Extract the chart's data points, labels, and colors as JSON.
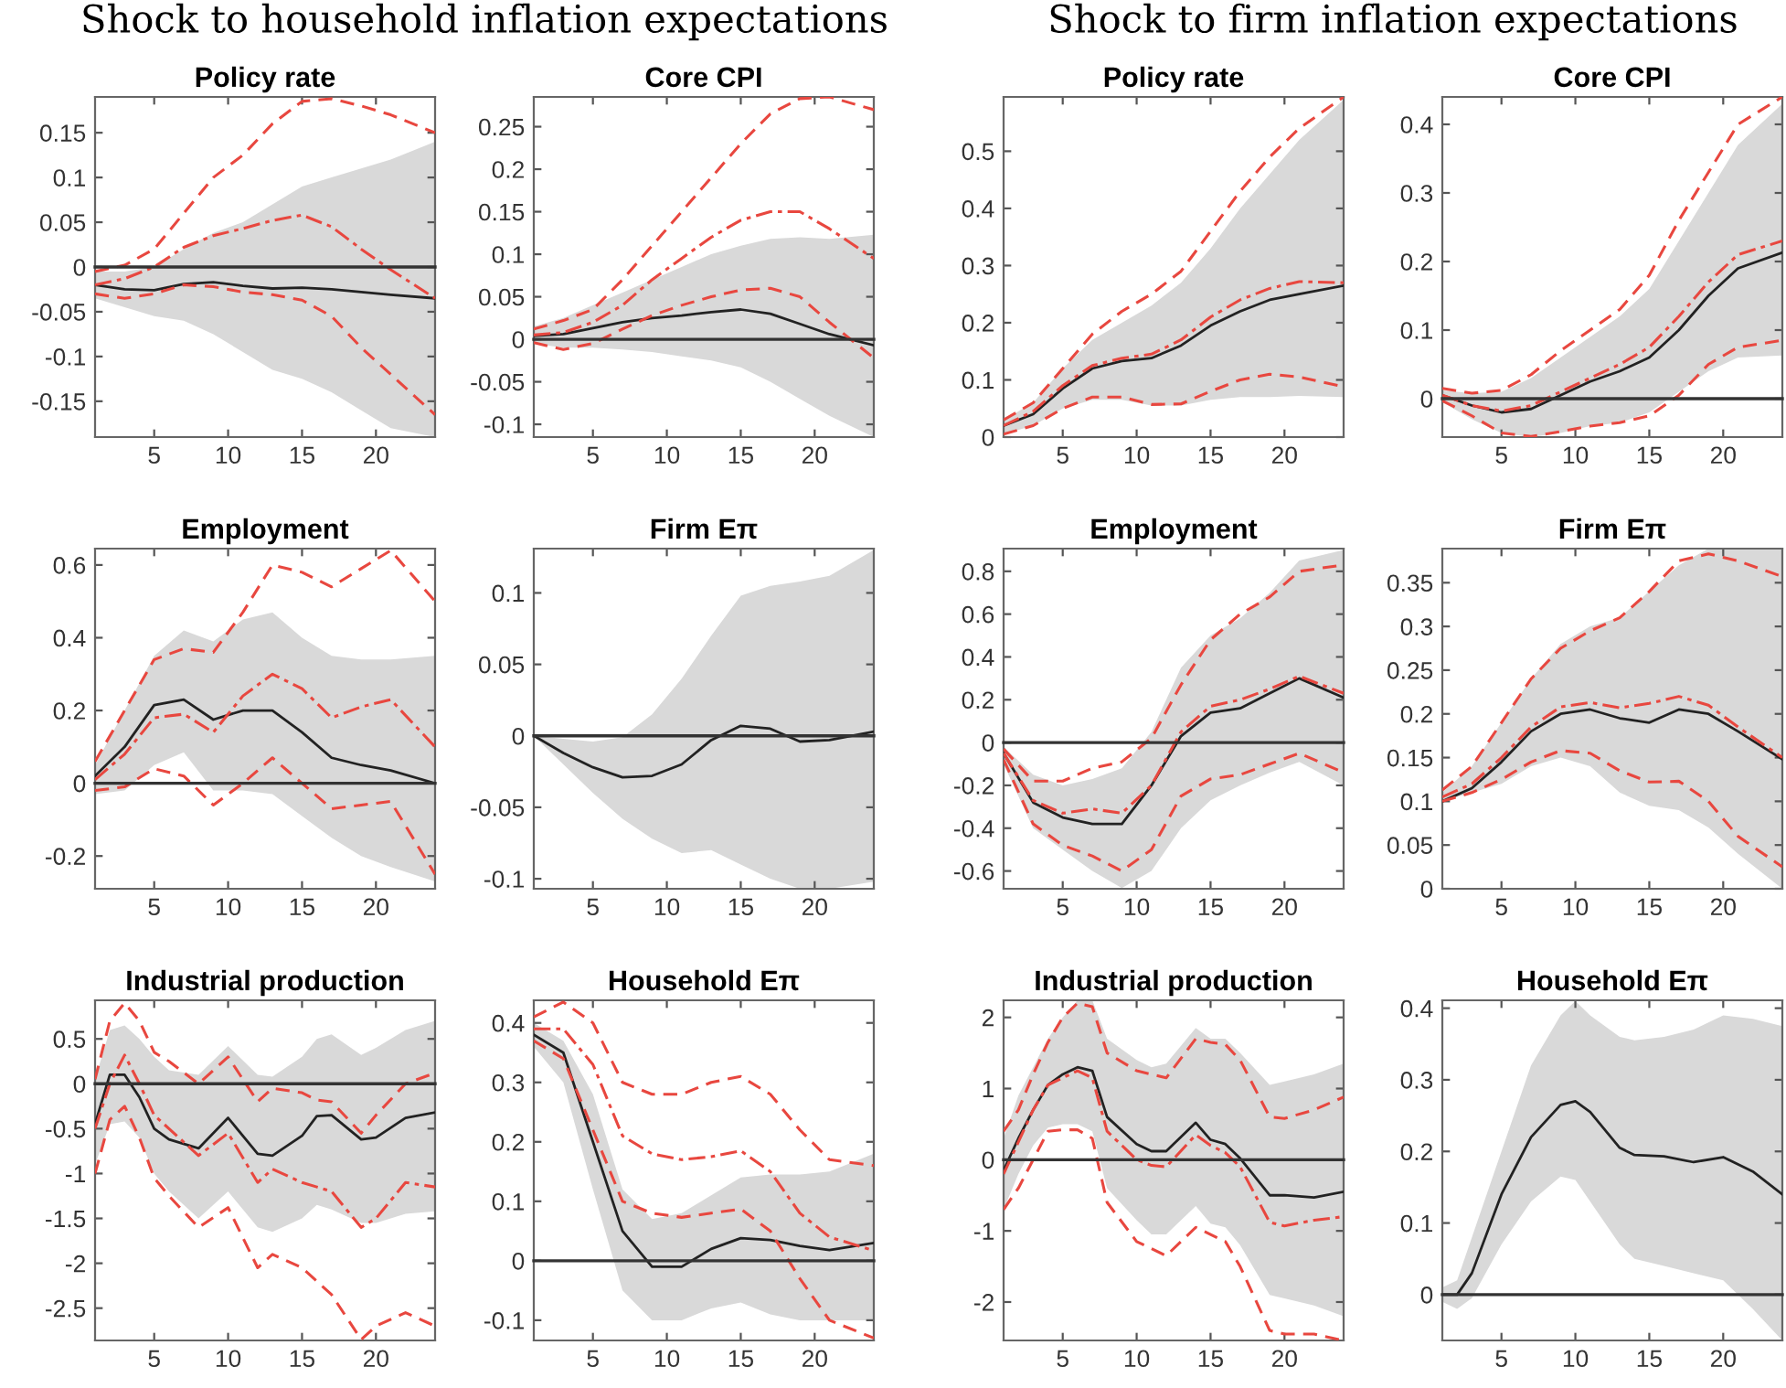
{
  "chart_data": [
    {
      "type": "line",
      "title": "Policy rate",
      "annotations": [
        "Shock to household inflation expectations"
      ],
      "xlim": [
        1,
        24
      ],
      "xticks": [
        5,
        10,
        15,
        20
      ],
      "ylim": [
        -0.19,
        0.19
      ],
      "yticks": [
        -0.15,
        -0.1,
        -0.05,
        0,
        0.05,
        0.1,
        0.15
      ],
      "x": [
        1,
        3,
        5,
        7,
        9,
        11,
        13,
        15,
        17,
        19,
        21,
        24
      ],
      "ref_lines": [
        {
          "axis": "y",
          "value": 0,
          "color": "#333333"
        }
      ],
      "series": [
        {
          "color": "#222222",
          "line_style": "solid",
          "values": [
            -0.02,
            -0.025,
            -0.026,
            -0.019,
            -0.017,
            -0.021,
            -0.024,
            -0.023,
            -0.025,
            -0.028,
            -0.031,
            -0.035
          ],
          "lower": [
            -0.035,
            -0.045,
            -0.055,
            -0.06,
            -0.075,
            -0.095,
            -0.115,
            -0.125,
            -0.14,
            -0.16,
            -0.18,
            -0.19
          ],
          "upper": [
            -0.005,
            -0.005,
            0.0,
            0.02,
            0.038,
            0.05,
            0.07,
            0.09,
            0.1,
            0.11,
            0.12,
            0.14
          ]
        },
        {
          "color": "#e8473f",
          "line_style": "dashed",
          "values": [
            -0.005,
            0.002,
            0.02,
            0.06,
            0.1,
            0.125,
            0.16,
            0.185,
            0.188,
            0.18,
            0.17,
            0.15
          ]
        },
        {
          "color": "#e8473f",
          "line_style": "dashdot",
          "values": [
            -0.02,
            -0.013,
            0.0,
            0.022,
            0.035,
            0.043,
            0.052,
            0.058,
            0.045,
            0.02,
            -0.003,
            -0.035
          ]
        },
        {
          "color": "#e8473f",
          "line_style": "dashed",
          "values": [
            -0.03,
            -0.035,
            -0.03,
            -0.02,
            -0.022,
            -0.028,
            -0.031,
            -0.037,
            -0.055,
            -0.09,
            -0.12,
            -0.165
          ]
        }
      ]
    },
    {
      "type": "line",
      "title": "Core CPI",
      "xlim": [
        1,
        24
      ],
      "xticks": [
        5,
        10,
        15,
        20
      ],
      "ylim": [
        -0.115,
        0.285
      ],
      "yticks": [
        -0.1,
        -0.05,
        0,
        0.05,
        0.1,
        0.15,
        0.2,
        0.25
      ],
      "x": [
        1,
        3,
        5,
        7,
        9,
        11,
        13,
        15,
        17,
        19,
        21,
        24
      ],
      "ref_lines": [
        {
          "axis": "y",
          "value": 0,
          "color": "#333333"
        }
      ],
      "series": [
        {
          "color": "#222222",
          "line_style": "solid",
          "values": [
            0.004,
            0.006,
            0.013,
            0.02,
            0.025,
            0.028,
            0.032,
            0.035,
            0.03,
            0.018,
            0.006,
            -0.007
          ],
          "lower": [
            -0.005,
            -0.01,
            -0.01,
            -0.012,
            -0.015,
            -0.02,
            -0.025,
            -0.033,
            -0.05,
            -0.07,
            -0.09,
            -0.115
          ],
          "upper": [
            0.015,
            0.025,
            0.04,
            0.055,
            0.07,
            0.085,
            0.1,
            0.11,
            0.118,
            0.12,
            0.118,
            0.123
          ]
        },
        {
          "color": "#e8473f",
          "line_style": "dashed",
          "values": [
            0.012,
            0.022,
            0.035,
            0.07,
            0.11,
            0.15,
            0.19,
            0.23,
            0.265,
            0.283,
            0.285,
            0.27
          ]
        },
        {
          "color": "#e8473f",
          "line_style": "dashdot",
          "values": [
            0.005,
            0.008,
            0.02,
            0.04,
            0.07,
            0.095,
            0.12,
            0.14,
            0.15,
            0.15,
            0.13,
            0.095
          ]
        },
        {
          "color": "#e8473f",
          "line_style": "dashed",
          "values": [
            -0.004,
            -0.012,
            -0.005,
            0.012,
            0.028,
            0.04,
            0.05,
            0.058,
            0.06,
            0.05,
            0.02,
            -0.022
          ]
        }
      ]
    },
    {
      "type": "line",
      "title": "Policy rate",
      "annotations": [
        "Shock to firm inflation expectations"
      ],
      "xlim": [
        1,
        24
      ],
      "xticks": [
        5,
        10,
        15,
        20
      ],
      "ylim": [
        0,
        0.595
      ],
      "yticks": [
        0,
        0.1,
        0.2,
        0.3,
        0.4,
        0.5
      ],
      "x": [
        1,
        3,
        5,
        7,
        9,
        11,
        13,
        15,
        17,
        19,
        21,
        24
      ],
      "series": [
        {
          "color": "#222222",
          "line_style": "solid",
          "values": [
            0.02,
            0.04,
            0.085,
            0.12,
            0.133,
            0.138,
            0.16,
            0.195,
            0.22,
            0.24,
            0.25,
            0.265
          ],
          "lower": [
            0.005,
            0.02,
            0.05,
            0.065,
            0.065,
            0.055,
            0.055,
            0.065,
            0.07,
            0.07,
            0.072,
            0.07
          ],
          "upper": [
            0.03,
            0.06,
            0.12,
            0.17,
            0.2,
            0.23,
            0.27,
            0.33,
            0.4,
            0.46,
            0.52,
            0.59
          ]
        },
        {
          "color": "#e8473f",
          "line_style": "dashed",
          "values": [
            0.03,
            0.06,
            0.12,
            0.18,
            0.22,
            0.25,
            0.29,
            0.36,
            0.43,
            0.49,
            0.54,
            0.595
          ]
        },
        {
          "color": "#e8473f",
          "line_style": "dashdot",
          "values": [
            0.02,
            0.045,
            0.09,
            0.125,
            0.138,
            0.145,
            0.17,
            0.21,
            0.24,
            0.26,
            0.272,
            0.27
          ]
        },
        {
          "color": "#e8473f",
          "line_style": "dashed",
          "values": [
            0.005,
            0.02,
            0.05,
            0.07,
            0.07,
            0.057,
            0.058,
            0.08,
            0.1,
            0.11,
            0.105,
            0.088
          ]
        }
      ]
    },
    {
      "type": "line",
      "title": "Core CPI",
      "xlim": [
        1,
        24
      ],
      "xticks": [
        5,
        10,
        15,
        20
      ],
      "ylim": [
        -0.056,
        0.44
      ],
      "yticks": [
        0,
        0.1,
        0.2,
        0.3,
        0.4
      ],
      "x": [
        1,
        3,
        5,
        7,
        9,
        11,
        13,
        15,
        17,
        19,
        21,
        24
      ],
      "ref_lines": [
        {
          "axis": "y",
          "value": 0,
          "color": "#333333"
        }
      ],
      "series": [
        {
          "color": "#222222",
          "line_style": "solid",
          "values": [
            0.005,
            -0.01,
            -0.02,
            -0.015,
            0.005,
            0.025,
            0.04,
            0.06,
            0.1,
            0.15,
            0.19,
            0.213
          ],
          "lower": [
            -0.005,
            -0.03,
            -0.05,
            -0.056,
            -0.05,
            -0.04,
            -0.035,
            -0.02,
            0.01,
            0.04,
            0.06,
            0.063
          ],
          "upper": [
            0.012,
            0.008,
            0.01,
            0.03,
            0.06,
            0.09,
            0.12,
            0.16,
            0.23,
            0.3,
            0.37,
            0.43
          ]
        },
        {
          "color": "#e8473f",
          "line_style": "dashed",
          "values": [
            0.015,
            0.008,
            0.012,
            0.035,
            0.07,
            0.1,
            0.13,
            0.18,
            0.26,
            0.33,
            0.4,
            0.44
          ]
        },
        {
          "color": "#e8473f",
          "line_style": "dashdot",
          "values": [
            0.005,
            -0.01,
            -0.018,
            -0.01,
            0.01,
            0.03,
            0.05,
            0.075,
            0.12,
            0.17,
            0.21,
            0.23
          ]
        },
        {
          "color": "#e8473f",
          "line_style": "dashed",
          "values": [
            -0.003,
            -0.025,
            -0.05,
            -0.055,
            -0.048,
            -0.04,
            -0.035,
            -0.025,
            0.005,
            0.05,
            0.075,
            0.085
          ]
        }
      ]
    },
    {
      "type": "line",
      "title": "Employment",
      "xlim": [
        1,
        24
      ],
      "xticks": [
        5,
        10,
        15,
        20
      ],
      "ylim": [
        -0.29,
        0.645
      ],
      "yticks": [
        -0.2,
        0,
        0.2,
        0.4,
        0.6
      ],
      "x": [
        1,
        3,
        5,
        7,
        9,
        11,
        13,
        15,
        17,
        19,
        21,
        24
      ],
      "ref_lines": [
        {
          "axis": "y",
          "value": 0,
          "color": "#333333"
        }
      ],
      "series": [
        {
          "color": "#222222",
          "line_style": "solid",
          "values": [
            0.02,
            0.1,
            0.215,
            0.23,
            0.175,
            0.2,
            0.2,
            0.14,
            0.07,
            0.05,
            0.035,
            0.0
          ],
          "lower": [
            -0.03,
            -0.02,
            0.05,
            0.085,
            -0.02,
            -0.02,
            -0.03,
            -0.09,
            -0.15,
            -0.2,
            -0.23,
            -0.27
          ],
          "upper": [
            0.05,
            0.2,
            0.35,
            0.42,
            0.39,
            0.45,
            0.47,
            0.4,
            0.35,
            0.34,
            0.34,
            0.35
          ]
        },
        {
          "color": "#e8473f",
          "line_style": "dashed",
          "values": [
            0.06,
            0.2,
            0.34,
            0.37,
            0.36,
            0.47,
            0.6,
            0.58,
            0.54,
            0.59,
            0.64,
            0.5
          ]
        },
        {
          "color": "#e8473f",
          "line_style": "dashdot",
          "values": [
            0.01,
            0.08,
            0.18,
            0.19,
            0.14,
            0.24,
            0.3,
            0.26,
            0.18,
            0.21,
            0.23,
            0.1
          ]
        },
        {
          "color": "#e8473f",
          "line_style": "dashed",
          "values": [
            -0.02,
            -0.01,
            0.04,
            0.02,
            -0.06,
            0.0,
            0.07,
            0.0,
            -0.07,
            -0.06,
            -0.05,
            -0.25
          ]
        }
      ]
    },
    {
      "type": "line",
      "title": "Firm Eπ",
      "xlim": [
        1,
        24
      ],
      "xticks": [
        5,
        10,
        15,
        20
      ],
      "ylim": [
        -0.107,
        0.131
      ],
      "yticks": [
        -0.1,
        -0.05,
        0,
        0.05,
        0.1
      ],
      "x": [
        1,
        3,
        5,
        7,
        9,
        11,
        13,
        15,
        17,
        19,
        21,
        24
      ],
      "ref_lines": [
        {
          "axis": "y",
          "value": 0,
          "color": "#333333"
        }
      ],
      "series": [
        {
          "color": "#222222",
          "line_style": "solid",
          "values": [
            0,
            -0.012,
            -0.022,
            -0.029,
            -0.028,
            -0.02,
            -0.003,
            0.007,
            0.005,
            -0.004,
            -0.003,
            0.003
          ],
          "lower": [
            0,
            -0.02,
            -0.04,
            -0.058,
            -0.072,
            -0.082,
            -0.08,
            -0.09,
            -0.1,
            -0.107,
            -0.107,
            -0.102
          ],
          "upper": [
            0,
            -0.002,
            -0.004,
            -0.001,
            0.015,
            0.04,
            0.07,
            0.098,
            0.105,
            0.108,
            0.112,
            0.13
          ]
        }
      ]
    },
    {
      "type": "line",
      "title": "Employment",
      "xlim": [
        1,
        24
      ],
      "xticks": [
        5,
        10,
        15,
        20
      ],
      "ylim": [
        -0.683,
        0.906
      ],
      "yticks": [
        -0.6,
        -0.4,
        -0.2,
        0,
        0.2,
        0.4,
        0.6,
        0.8
      ],
      "x": [
        1,
        3,
        5,
        7,
        9,
        11,
        13,
        15,
        17,
        19,
        21,
        24
      ],
      "ref_lines": [
        {
          "axis": "y",
          "value": 0,
          "color": "#333333"
        }
      ],
      "series": [
        {
          "color": "#222222",
          "line_style": "solid",
          "values": [
            -0.05,
            -0.28,
            -0.35,
            -0.38,
            -0.38,
            -0.2,
            0.03,
            0.14,
            0.16,
            0.23,
            0.3,
            0.21
          ],
          "lower": [
            -0.1,
            -0.4,
            -0.5,
            -0.6,
            -0.68,
            -0.6,
            -0.4,
            -0.27,
            -0.2,
            -0.14,
            -0.09,
            -0.2
          ],
          "upper": [
            -0.02,
            -0.15,
            -0.2,
            -0.17,
            -0.12,
            0.05,
            0.35,
            0.5,
            0.58,
            0.7,
            0.85,
            0.9
          ]
        },
        {
          "color": "#e8473f",
          "line_style": "dashed",
          "values": [
            -0.03,
            -0.18,
            -0.18,
            -0.12,
            -0.09,
            0.02,
            0.27,
            0.48,
            0.6,
            0.68,
            0.8,
            0.83
          ]
        },
        {
          "color": "#e8473f",
          "line_style": "dashdot",
          "values": [
            -0.05,
            -0.27,
            -0.33,
            -0.31,
            -0.33,
            -0.2,
            0.05,
            0.17,
            0.2,
            0.25,
            0.31,
            0.23
          ]
        },
        {
          "color": "#e8473f",
          "line_style": "dashed",
          "values": [
            -0.08,
            -0.38,
            -0.48,
            -0.53,
            -0.6,
            -0.5,
            -0.25,
            -0.17,
            -0.15,
            -0.1,
            -0.05,
            -0.14
          ]
        }
      ]
    },
    {
      "type": "line",
      "title": "Firm Eπ",
      "xlim": [
        1,
        24
      ],
      "xticks": [
        5,
        10,
        15,
        20
      ],
      "ylim": [
        0,
        0.389
      ],
      "yticks": [
        0,
        0.05,
        0.1,
        0.15,
        0.2,
        0.25,
        0.3,
        0.35
      ],
      "x": [
        1,
        3,
        5,
        7,
        9,
        11,
        13,
        15,
        17,
        19,
        21,
        24
      ],
      "series": [
        {
          "color": "#222222",
          "line_style": "solid",
          "values": [
            0.1,
            0.115,
            0.145,
            0.18,
            0.2,
            0.205,
            0.195,
            0.19,
            0.205,
            0.2,
            0.18,
            0.148
          ],
          "lower": [
            0.1,
            0.11,
            0.12,
            0.14,
            0.15,
            0.14,
            0.11,
            0.095,
            0.09,
            0.07,
            0.04,
            0.0
          ],
          "upper": [
            0.11,
            0.14,
            0.19,
            0.24,
            0.28,
            0.3,
            0.31,
            0.34,
            0.37,
            0.389,
            0.389,
            0.389
          ]
        },
        {
          "color": "#e8473f",
          "line_style": "dashed",
          "values": [
            0.113,
            0.14,
            0.19,
            0.24,
            0.275,
            0.295,
            0.31,
            0.34,
            0.375,
            0.383,
            0.375,
            0.357
          ]
        },
        {
          "color": "#e8473f",
          "line_style": "dashdot",
          "values": [
            0.105,
            0.12,
            0.15,
            0.185,
            0.208,
            0.213,
            0.207,
            0.212,
            0.22,
            0.21,
            0.185,
            0.15
          ]
        },
        {
          "color": "#e8473f",
          "line_style": "dashed",
          "values": [
            0.1,
            0.11,
            0.125,
            0.145,
            0.158,
            0.155,
            0.135,
            0.122,
            0.123,
            0.1,
            0.06,
            0.025
          ]
        }
      ]
    },
    {
      "type": "line",
      "title": "Industrial production",
      "xlim": [
        1,
        24
      ],
      "xticks": [
        5,
        10,
        15,
        20
      ],
      "ylim": [
        -2.86,
        0.93
      ],
      "yticks": [
        -2.5,
        -2,
        -1.5,
        -1,
        -0.5,
        0,
        0.5
      ],
      "x": [
        1,
        2,
        3,
        4,
        5,
        6,
        8,
        10,
        12,
        13,
        15,
        16,
        17,
        19,
        20,
        22,
        24
      ],
      "ref_lines": [
        {
          "axis": "y",
          "value": 0,
          "color": "#333333"
        }
      ],
      "series": [
        {
          "color": "#222222",
          "line_style": "solid",
          "values": [
            -0.45,
            0.1,
            0.1,
            -0.15,
            -0.5,
            -0.62,
            -0.72,
            -0.38,
            -0.78,
            -0.8,
            -0.58,
            -0.36,
            -0.35,
            -0.62,
            -0.6,
            -0.38,
            -0.32
          ],
          "lower": [
            -0.9,
            -0.45,
            -0.42,
            -0.6,
            -1.0,
            -1.2,
            -1.5,
            -1.2,
            -1.6,
            -1.65,
            -1.5,
            -1.35,
            -1.4,
            -1.55,
            -1.55,
            -1.45,
            -1.42
          ],
          "upper": [
            0.05,
            0.6,
            0.65,
            0.5,
            0.3,
            0.15,
            0.1,
            0.42,
            0.1,
            0.08,
            0.3,
            0.5,
            0.55,
            0.32,
            0.4,
            0.6,
            0.7
          ]
        },
        {
          "color": "#e8473f",
          "line_style": "dashed",
          "values": [
            0.05,
            0.7,
            0.9,
            0.7,
            0.35,
            0.25,
            0.0,
            0.3,
            -0.2,
            -0.05,
            -0.1,
            -0.18,
            -0.2,
            -0.55,
            -0.35,
            0.0,
            0.12
          ]
        },
        {
          "color": "#e8473f",
          "line_style": "dashdot",
          "values": [
            -0.5,
            0.0,
            0.32,
            0.0,
            -0.35,
            -0.5,
            -0.8,
            -0.55,
            -1.1,
            -0.95,
            -1.1,
            -1.15,
            -1.2,
            -1.6,
            -1.5,
            -1.1,
            -1.15
          ]
        },
        {
          "color": "#e8473f",
          "line_style": "dashed",
          "values": [
            -1.0,
            -0.4,
            -0.25,
            -0.6,
            -1.05,
            -1.25,
            -1.6,
            -1.38,
            -2.05,
            -1.9,
            -2.05,
            -2.2,
            -2.35,
            -2.85,
            -2.7,
            -2.55,
            -2.7
          ]
        }
      ]
    },
    {
      "type": "line",
      "title": "Household Eπ",
      "xlim": [
        1,
        24
      ],
      "xticks": [
        5,
        10,
        15,
        20
      ],
      "ylim": [
        -0.134,
        0.438
      ],
      "yticks": [
        -0.1,
        0,
        0.1,
        0.2,
        0.3,
        0.4
      ],
      "x": [
        1,
        3,
        5,
        7,
        9,
        11,
        13,
        15,
        17,
        19,
        21,
        24
      ],
      "ref_lines": [
        {
          "axis": "y",
          "value": 0,
          "color": "#333333"
        }
      ],
      "series": [
        {
          "color": "#222222",
          "line_style": "solid",
          "values": [
            0.38,
            0.35,
            0.2,
            0.05,
            -0.01,
            -0.01,
            0.02,
            0.038,
            0.035,
            0.025,
            0.018,
            0.03
          ],
          "lower": [
            0.36,
            0.3,
            0.12,
            -0.05,
            -0.1,
            -0.1,
            -0.08,
            -0.07,
            -0.09,
            -0.1,
            -0.1,
            -0.1
          ],
          "upper": [
            0.4,
            0.37,
            0.28,
            0.12,
            0.07,
            0.08,
            0.11,
            0.14,
            0.145,
            0.145,
            0.15,
            0.18
          ]
        },
        {
          "color": "#e8473f",
          "line_style": "dashed",
          "values": [
            0.41,
            0.435,
            0.4,
            0.3,
            0.28,
            0.28,
            0.3,
            0.31,
            0.28,
            0.22,
            0.17,
            0.16
          ]
        },
        {
          "color": "#e8473f",
          "line_style": "dashdot",
          "values": [
            0.39,
            0.39,
            0.33,
            0.21,
            0.18,
            0.17,
            0.175,
            0.185,
            0.15,
            0.08,
            0.04,
            0.017
          ]
        },
        {
          "color": "#e8473f",
          "line_style": "dashed",
          "values": [
            0.37,
            0.34,
            0.22,
            0.1,
            0.08,
            0.073,
            0.08,
            0.087,
            0.05,
            -0.03,
            -0.1,
            -0.13
          ]
        }
      ]
    },
    {
      "type": "line",
      "title": "Industrial production",
      "xlim": [
        1,
        24
      ],
      "xticks": [
        5,
        10,
        15,
        20
      ],
      "ylim": [
        -2.54,
        2.24
      ],
      "yticks": [
        -2,
        -1,
        0,
        1,
        2
      ],
      "x": [
        1,
        2,
        3,
        4,
        5,
        6,
        7,
        8,
        10,
        11,
        12,
        14,
        15,
        16,
        17,
        19,
        20,
        22,
        24
      ],
      "ref_lines": [
        {
          "axis": "y",
          "value": 0,
          "color": "#333333"
        }
      ],
      "series": [
        {
          "color": "#222222",
          "line_style": "solid",
          "values": [
            -0.15,
            0.3,
            0.7,
            1.05,
            1.2,
            1.3,
            1.25,
            0.6,
            0.22,
            0.12,
            0.12,
            0.52,
            0.28,
            0.22,
            0.02,
            -0.5,
            -0.5,
            -0.53,
            -0.45
          ],
          "lower": [
            -0.7,
            -0.2,
            0.2,
            0.45,
            0.5,
            0.5,
            0.4,
            -0.4,
            -0.85,
            -1.05,
            -1.05,
            -0.65,
            -0.9,
            -0.95,
            -1.2,
            -1.9,
            -1.95,
            -2.05,
            -2.2
          ],
          "upper": [
            0.3,
            0.9,
            1.3,
            1.7,
            2.0,
            2.24,
            2.24,
            1.7,
            1.4,
            1.3,
            1.35,
            1.85,
            1.7,
            1.7,
            1.5,
            1.05,
            1.1,
            1.2,
            1.35
          ]
        },
        {
          "color": "#e8473f",
          "line_style": "dashed",
          "values": [
            0.4,
            0.7,
            1.2,
            1.65,
            2.0,
            2.2,
            2.15,
            1.5,
            1.25,
            1.2,
            1.15,
            1.7,
            1.65,
            1.62,
            1.4,
            0.6,
            0.58,
            0.7,
            0.88
          ]
        },
        {
          "color": "#e8473f",
          "line_style": "dashdot",
          "values": [
            -0.2,
            0.25,
            0.7,
            1.05,
            1.15,
            1.25,
            1.15,
            0.4,
            0.0,
            -0.08,
            -0.1,
            0.35,
            0.2,
            0.1,
            -0.1,
            -0.88,
            -0.93,
            -0.85,
            -0.8
          ]
        },
        {
          "color": "#e8473f",
          "line_style": "dashed",
          "values": [
            -0.7,
            -0.4,
            0.0,
            0.4,
            0.42,
            0.42,
            0.3,
            -0.6,
            -1.15,
            -1.25,
            -1.35,
            -0.95,
            -1.05,
            -1.15,
            -1.5,
            -2.4,
            -2.45,
            -2.45,
            -2.54
          ]
        }
      ]
    },
    {
      "type": "line",
      "title": "Household Eπ",
      "xlim": [
        1,
        24
      ],
      "xticks": [
        5,
        10,
        15,
        20
      ],
      "ylim": [
        -0.064,
        0.411
      ],
      "yticks": [
        0,
        0.1,
        0.2,
        0.3,
        0.4
      ],
      "x": [
        1,
        2,
        3,
        5,
        7,
        9,
        10,
        11,
        13,
        14,
        16,
        18,
        20,
        22,
        24
      ],
      "ref_lines": [
        {
          "axis": "y",
          "value": 0,
          "color": "#333333"
        }
      ],
      "series": [
        {
          "color": "#222222",
          "line_style": "solid",
          "values": [
            0,
            0,
            0.03,
            0.14,
            0.22,
            0.265,
            0.27,
            0.255,
            0.205,
            0.195,
            0.193,
            0.185,
            0.192,
            0.172,
            0.14
          ],
          "lower": [
            -0.01,
            -0.02,
            -0.005,
            0.07,
            0.13,
            0.165,
            0.16,
            0.13,
            0.07,
            0.05,
            0.04,
            0.03,
            0.02,
            -0.02,
            -0.064
          ],
          "upper": [
            0.01,
            0.02,
            0.08,
            0.2,
            0.32,
            0.39,
            0.41,
            0.39,
            0.36,
            0.355,
            0.36,
            0.37,
            0.39,
            0.385,
            0.375
          ]
        }
      ]
    }
  ]
}
